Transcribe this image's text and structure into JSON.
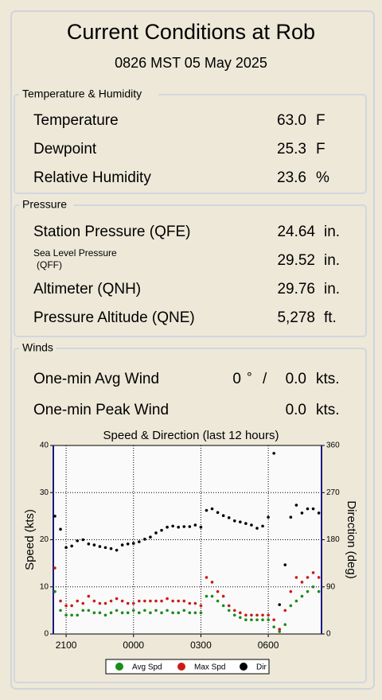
{
  "header": {
    "title": "Current Conditions at Rob",
    "subtitle": "0826 MST 05 May 2025"
  },
  "sections": [
    {
      "title": "Temperature & Humidity",
      "rows": [
        {
          "label": "Temperature",
          "value": "63.0",
          "unit": "F"
        },
        {
          "label": "Dewpoint",
          "value": "25.3",
          "unit": "F"
        },
        {
          "label": "Relative Humidity",
          "value": "23.6",
          "unit": "%"
        }
      ]
    },
    {
      "title": "Pressure",
      "rows": [
        {
          "label": "Station Pressure (QFE)",
          "value": "24.64",
          "unit": "in."
        },
        {
          "label": [
            "Sea Level Pressure",
            "(QFF)"
          ],
          "value": "29.52",
          "unit": "in."
        },
        {
          "label": "Altimeter (QNH)",
          "value": "29.76",
          "unit": "in."
        },
        {
          "label": "Pressure Altitude (QNE)",
          "value": "5,278",
          "unit": "ft."
        }
      ]
    },
    {
      "title": "Winds",
      "rows": [
        {
          "label": "One-min Avg Wind",
          "direction": "0",
          "direction_unit": "°",
          "separator": "/",
          "value": "0.0",
          "unit": "kts."
        },
        {
          "label": "One-min Peak Wind",
          "value": "0.0",
          "unit": "kts."
        }
      ]
    }
  ],
  "chart_data": {
    "type": "scatter",
    "title": "Speed & Direction (last 12 hours)",
    "y_label": "Speed (kts)",
    "y2_label": "Direction (deg)",
    "xlim": [
      20.43,
      32.37
    ],
    "xticks": [
      {
        "value": 21,
        "label": "2100"
      },
      {
        "value": 24,
        "label": "0000"
      },
      {
        "value": 27,
        "label": "0300"
      },
      {
        "value": 30,
        "label": "0600"
      }
    ],
    "ylim": [
      0,
      40
    ],
    "yticks": [
      0,
      10,
      20,
      30,
      40
    ],
    "y2lim": [
      0,
      360
    ],
    "y2ticks": [
      0,
      90,
      180,
      270,
      360
    ],
    "grid": true,
    "legend": "bottom",
    "x": [
      20.5,
      20.75,
      21,
      21.25,
      21.5,
      21.75,
      22,
      22.25,
      22.5,
      22.75,
      23,
      23.25,
      23.5,
      23.75,
      24,
      24.25,
      24.5,
      24.75,
      25,
      25.25,
      25.5,
      25.75,
      26,
      26.25,
      26.5,
      26.75,
      27,
      27.25,
      27.5,
      27.75,
      28,
      28.25,
      28.5,
      28.75,
      29,
      29.25,
      29.5,
      29.75,
      30,
      30.25,
      30.5,
      30.75,
      31,
      31.25,
      31.5,
      31.75,
      32,
      32.25
    ],
    "series": [
      {
        "name": "Avg Spd",
        "color": "#1a8c1a",
        "values": [
          9,
          5,
          4,
          4,
          4,
          5,
          5,
          4.5,
          4.5,
          4,
          4.5,
          5,
          4.5,
          4.5,
          5,
          4.5,
          5,
          4.5,
          5,
          4.5,
          5,
          4.5,
          4.5,
          5,
          4.5,
          4.5,
          4.5,
          8,
          8,
          7,
          6,
          5,
          4,
          3.5,
          3,
          3,
          3,
          3,
          3,
          1.5,
          0.5,
          2,
          6,
          7,
          8,
          9,
          10,
          9
        ]
      },
      {
        "name": "Max Spd",
        "color": "#cc1a1a",
        "values": [
          14,
          7,
          6,
          6,
          7,
          6.5,
          8,
          7,
          6.5,
          6.5,
          7,
          7.5,
          7,
          6.5,
          6.5,
          7,
          7,
          7,
          7,
          7,
          7.5,
          7,
          7,
          7,
          6.5,
          6.5,
          6,
          12,
          11,
          9,
          8,
          6,
          5,
          4.5,
          4,
          4,
          4,
          4,
          4,
          3,
          1,
          5,
          9,
          12,
          11,
          12,
          13,
          12
        ]
      },
      {
        "name": "Dir",
        "color": "#000000",
        "axis": "y2",
        "values": [
          225,
          200,
          165,
          168,
          178,
          180,
          172,
          170,
          167,
          165,
          163,
          160,
          170,
          172,
          173,
          176,
          181,
          185,
          193,
          198,
          204,
          206,
          204,
          205,
          205,
          208,
          204,
          236,
          239,
          232,
          226,
          222,
          216,
          214,
          211,
          208,
          202,
          206,
          223,
          345,
          56,
          132,
          223,
          246,
          231,
          239,
          239,
          231
        ]
      }
    ]
  }
}
